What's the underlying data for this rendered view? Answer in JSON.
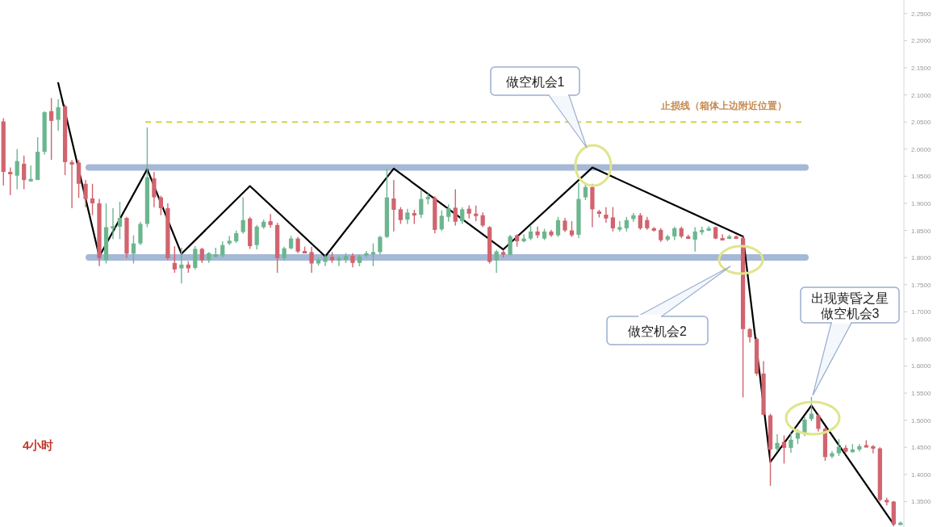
{
  "chart_data": {
    "type": "candlestick",
    "categories": [
      null,
      null,
      null,
      null,
      null,
      null,
      null,
      null,
      null,
      null,
      null,
      null,
      null,
      null,
      null,
      null,
      null,
      null,
      null,
      null,
      null,
      null,
      null,
      null,
      null,
      null,
      null,
      null,
      null,
      null,
      null,
      null,
      null,
      null,
      null,
      null,
      null,
      null,
      null,
      null,
      null,
      null,
      null,
      null,
      null,
      null,
      null,
      null,
      null,
      null,
      null,
      null,
      null,
      null,
      null,
      null,
      null,
      null,
      null,
      null,
      null,
      null,
      null,
      null,
      null,
      null,
      null,
      null,
      null,
      null,
      null,
      null,
      null,
      null,
      null,
      null,
      null,
      null,
      null,
      null,
      null,
      null,
      null,
      null,
      null,
      null,
      null,
      null,
      null,
      null,
      null,
      null,
      null,
      null,
      null,
      null,
      null,
      null,
      null,
      null,
      null,
      null,
      null,
      null,
      null,
      null,
      null,
      null,
      null,
      null,
      null,
      null,
      null,
      null,
      null,
      null,
      null,
      null,
      null,
      null,
      null,
      null,
      null,
      null,
      null,
      null,
      null,
      null,
      null,
      null,
      null,
      null
    ],
    "ohlc": [
      [
        2.051,
        2.057,
        1.933,
        1.958
      ],
      [
        1.958,
        1.966,
        1.915,
        1.955
      ],
      [
        1.951,
        2.0,
        1.926,
        1.978
      ],
      [
        1.973,
        1.988,
        1.926,
        1.943
      ],
      [
        1.943,
        1.97,
        1.94,
        1.945
      ],
      [
        1.943,
        2.022,
        1.943,
        1.995
      ],
      [
        1.995,
        2.07,
        1.99,
        2.068
      ],
      [
        2.07,
        2.094,
        1.98,
        2.052
      ],
      [
        2.054,
        2.092,
        2.034,
        2.077
      ],
      [
        2.079,
        2.082,
        1.952,
        1.976
      ],
      [
        1.976,
        1.98,
        1.891,
        1.972
      ],
      [
        1.975,
        1.98,
        1.91,
        1.936
      ],
      [
        1.936,
        1.943,
        1.893,
        1.908
      ],
      [
        1.909,
        1.936,
        1.878,
        1.9
      ],
      [
        1.9,
        1.908,
        1.784,
        1.799
      ],
      [
        1.795,
        1.9,
        1.789,
        1.856
      ],
      [
        1.856,
        1.891,
        1.834,
        1.858
      ],
      [
        1.857,
        1.903,
        1.834,
        1.873
      ],
      [
        1.873,
        1.875,
        1.799,
        1.807
      ],
      [
        1.807,
        1.841,
        1.789,
        1.826
      ],
      [
        1.826,
        1.866,
        1.823,
        1.862
      ],
      [
        1.862,
        2.04,
        1.856,
        1.948
      ],
      [
        1.946,
        1.958,
        1.893,
        1.911
      ],
      [
        1.911,
        1.914,
        1.878,
        1.891
      ],
      [
        1.891,
        1.9,
        1.795,
        1.799
      ],
      [
        1.79,
        1.821,
        1.772,
        1.778
      ],
      [
        1.78,
        1.818,
        1.752,
        1.787
      ],
      [
        1.787,
        1.793,
        1.772,
        1.78
      ],
      [
        1.781,
        1.821,
        1.778,
        1.816
      ],
      [
        1.816,
        1.818,
        1.79,
        1.795
      ],
      [
        1.795,
        1.81,
        1.79,
        1.808
      ],
      [
        1.805,
        1.818,
        1.8,
        1.806
      ],
      [
        1.804,
        1.83,
        1.8,
        1.823
      ],
      [
        1.826,
        1.84,
        1.823,
        1.831
      ],
      [
        1.83,
        1.85,
        1.827,
        1.845
      ],
      [
        1.847,
        1.911,
        1.844,
        1.869
      ],
      [
        1.872,
        1.875,
        1.816,
        1.821
      ],
      [
        1.823,
        1.86,
        1.815,
        1.857
      ],
      [
        1.856,
        1.87,
        1.853,
        1.866
      ],
      [
        1.867,
        1.88,
        1.855,
        1.86
      ],
      [
        1.86,
        1.864,
        1.772,
        1.799
      ],
      [
        1.799,
        1.82,
        1.795,
        1.817
      ],
      [
        1.817,
        1.84,
        1.815,
        1.835
      ],
      [
        1.835,
        1.838,
        1.808,
        1.811
      ],
      [
        1.812,
        1.82,
        1.808,
        1.811
      ],
      [
        1.81,
        1.82,
        1.772,
        1.789
      ],
      [
        1.789,
        1.8,
        1.785,
        1.796
      ],
      [
        1.792,
        1.805,
        1.784,
        1.802
      ],
      [
        1.801,
        1.81,
        1.79,
        1.795
      ],
      [
        1.797,
        1.802,
        1.784,
        1.799
      ],
      [
        1.796,
        1.808,
        1.79,
        1.803
      ],
      [
        1.803,
        1.808,
        1.782,
        1.79
      ],
      [
        1.79,
        1.805,
        1.784,
        1.802
      ],
      [
        1.804,
        1.812,
        1.8,
        1.808
      ],
      [
        1.808,
        1.826,
        1.784,
        1.81
      ],
      [
        1.81,
        1.84,
        1.806,
        1.838
      ],
      [
        1.838,
        1.963,
        1.836,
        1.911
      ],
      [
        1.909,
        1.943,
        1.848,
        1.888
      ],
      [
        1.889,
        1.893,
        1.862,
        1.869
      ],
      [
        1.87,
        1.89,
        1.862,
        1.883
      ],
      [
        1.882,
        1.888,
        1.862,
        1.878
      ],
      [
        1.879,
        1.925,
        1.873,
        1.908
      ],
      [
        1.91,
        1.918,
        1.898,
        1.912
      ],
      [
        1.91,
        1.913,
        1.845,
        1.851
      ],
      [
        1.852,
        1.887,
        1.849,
        1.877
      ],
      [
        1.875,
        1.898,
        1.866,
        1.891
      ],
      [
        1.892,
        1.926,
        1.859,
        1.866
      ],
      [
        1.867,
        1.893,
        1.862,
        1.889
      ],
      [
        1.89,
        1.896,
        1.872,
        1.881
      ],
      [
        1.881,
        1.896,
        1.867,
        1.878
      ],
      [
        1.878,
        1.883,
        1.856,
        1.859
      ],
      [
        1.856,
        1.858,
        1.789,
        1.792
      ],
      [
        1.795,
        1.814,
        1.772,
        1.811
      ],
      [
        1.81,
        1.814,
        1.8,
        1.807
      ],
      [
        1.805,
        1.842,
        1.804,
        1.839
      ],
      [
        1.841,
        1.843,
        1.82,
        1.83
      ],
      [
        1.83,
        1.843,
        1.828,
        1.835
      ],
      [
        1.835,
        1.858,
        1.832,
        1.848
      ],
      [
        1.848,
        1.857,
        1.836,
        1.841
      ],
      [
        1.835,
        1.853,
        1.832,
        1.848
      ],
      [
        1.848,
        1.851,
        1.838,
        1.841
      ],
      [
        1.841,
        1.875,
        1.838,
        1.869
      ],
      [
        1.868,
        1.873,
        1.847,
        1.85
      ],
      [
        1.85,
        1.867,
        1.838,
        1.841
      ],
      [
        1.842,
        1.938,
        1.836,
        1.908
      ],
      [
        1.911,
        1.938,
        1.906,
        1.93
      ],
      [
        1.93,
        1.936,
        1.856,
        1.889
      ],
      [
        1.885,
        1.888,
        1.874,
        1.881
      ],
      [
        1.879,
        1.893,
        1.864,
        1.872
      ],
      [
        1.874,
        1.893,
        1.848,
        1.854
      ],
      [
        1.854,
        1.867,
        1.848,
        1.856
      ],
      [
        1.854,
        1.875,
        1.848,
        1.869
      ],
      [
        1.871,
        1.882,
        1.866,
        1.878
      ],
      [
        1.878,
        1.882,
        1.851,
        1.854
      ],
      [
        1.869,
        1.875,
        1.851,
        1.854
      ],
      [
        1.854,
        1.856,
        1.848,
        1.851
      ],
      [
        1.851,
        1.854,
        1.829,
        1.832
      ],
      [
        1.833,
        1.842,
        1.83,
        1.839
      ],
      [
        1.839,
        1.857,
        1.832,
        1.854
      ],
      [
        1.854,
        1.857,
        1.836,
        1.839
      ],
      [
        1.839,
        1.842,
        1.834,
        1.836
      ],
      [
        1.833,
        1.856,
        1.811,
        1.848
      ],
      [
        1.849,
        1.857,
        1.842,
        1.851
      ],
      [
        1.853,
        1.858,
        1.849,
        1.854
      ],
      [
        1.856,
        1.857,
        1.834,
        1.835
      ],
      [
        1.836,
        1.843,
        1.832,
        1.834
      ],
      [
        1.835,
        1.842,
        1.834,
        1.839
      ],
      [
        1.839,
        1.841,
        1.834,
        1.835
      ],
      [
        1.836,
        1.839,
        1.542,
        1.668
      ],
      [
        1.668,
        1.67,
        1.643,
        1.653
      ],
      [
        1.65,
        1.653,
        1.582,
        1.586
      ],
      [
        1.586,
        1.609,
        1.509,
        1.51
      ],
      [
        1.509,
        1.512,
        1.379,
        1.446
      ],
      [
        1.447,
        1.474,
        1.442,
        1.458
      ],
      [
        1.46,
        1.472,
        1.42,
        1.449
      ],
      [
        1.449,
        1.476,
        1.44,
        1.464
      ],
      [
        1.466,
        1.483,
        1.456,
        1.477
      ],
      [
        1.476,
        1.506,
        1.471,
        1.501
      ],
      [
        1.502,
        1.543,
        1.498,
        1.512
      ],
      [
        1.509,
        1.512,
        1.479,
        1.484
      ],
      [
        1.484,
        1.487,
        1.425,
        1.432
      ],
      [
        1.433,
        1.443,
        1.43,
        1.439
      ],
      [
        1.439,
        1.465,
        1.434,
        1.451
      ],
      [
        1.449,
        1.454,
        1.44,
        1.442
      ],
      [
        1.441,
        1.456,
        1.44,
        1.446
      ],
      [
        1.446,
        1.456,
        1.442,
        1.452
      ],
      [
        1.454,
        1.463,
        1.45,
        1.451
      ],
      [
        1.452,
        1.454,
        1.439,
        1.448
      ],
      [
        1.448,
        1.45,
        1.35,
        1.353
      ],
      [
        1.353,
        1.357,
        1.343,
        1.35
      ],
      [
        1.35,
        1.351,
        1.304,
        1.308
      ],
      [
        1.31,
        1.313,
        1.308,
        1.311
      ]
    ],
    "series": [
      {
        "type": "line",
        "color": "#000000",
        "values": [
          null,
          null,
          null,
          null,
          null,
          null,
          null,
          null,
          2.122,
          null,
          null,
          null,
          null,
          null,
          1.802,
          null,
          null,
          null,
          null,
          null,
          null,
          1.963,
          null,
          null,
          null,
          null,
          1.807,
          null,
          null,
          null,
          null,
          null,
          null,
          null,
          null,
          null,
          1.932,
          null,
          null,
          null,
          null,
          null,
          null,
          null,
          null,
          null,
          null,
          1.802,
          null,
          null,
          null,
          null,
          null,
          null,
          null,
          null,
          null,
          1.964,
          null,
          null,
          null,
          null,
          null,
          null,
          null,
          null,
          null,
          null,
          null,
          null,
          null,
          null,
          null,
          1.815,
          null,
          null,
          null,
          null,
          null,
          null,
          null,
          null,
          null,
          null,
          null,
          null,
          1.966,
          null,
          null,
          null,
          null,
          null,
          null,
          null,
          null,
          null,
          null,
          null,
          null,
          null,
          null,
          null,
          null,
          null,
          null,
          null,
          null,
          null,
          1.839,
          null,
          null,
          null,
          1.423,
          null,
          null,
          null,
          null,
          null,
          1.527,
          null,
          null,
          null,
          null,
          null,
          null,
          null,
          null,
          null,
          null,
          null,
          1.308,
          null
        ]
      }
    ],
    "ylim": [
      1.303,
      2.275
    ],
    "yticks": [
      {
        "value": 2.25,
        "label": "2.2500"
      },
      {
        "value": 2.2,
        "label": "2.2000"
      },
      {
        "value": 2.15,
        "label": "2.1500"
      },
      {
        "value": 2.1,
        "label": "2.1000"
      },
      {
        "value": 2.05,
        "label": "2.0500"
      },
      {
        "value": 2.0,
        "label": "2.0000"
      },
      {
        "value": 1.95,
        "label": "1.9500"
      },
      {
        "value": 1.9,
        "label": "1.9000"
      },
      {
        "value": 1.85,
        "label": "1.8500"
      },
      {
        "value": 1.8,
        "label": "1.8000"
      },
      {
        "value": 1.75,
        "label": "1.7500"
      },
      {
        "value": 1.7,
        "label": "1.7000"
      },
      {
        "value": 1.65,
        "label": "1.6500"
      },
      {
        "value": 1.6,
        "label": "1.6000"
      },
      {
        "value": 1.55,
        "label": "1.5500"
      },
      {
        "value": 1.5,
        "label": "1.5000"
      },
      {
        "value": 1.45,
        "label": "1.4500"
      },
      {
        "value": 1.4,
        "label": "1.4000"
      },
      {
        "value": 1.35,
        "label": "1.3500"
      }
    ],
    "ref_lines": [
      {
        "axis": "y",
        "value": 1.966,
        "color": "#8fa6cc",
        "line_style": "solid"
      },
      {
        "axis": "y",
        "value": 1.8,
        "color": "#8fa6cc",
        "line_style": "solid"
      },
      {
        "axis": "y",
        "value": 2.05,
        "color": "#d4d24a",
        "line_style": "dashed",
        "label": "止损线（箱体上边附近位置）"
      }
    ],
    "annotations": [
      "做空机会1",
      "做空机会2",
      "出现黄昏之星做空机会3",
      "4小时"
    ]
  }
}
